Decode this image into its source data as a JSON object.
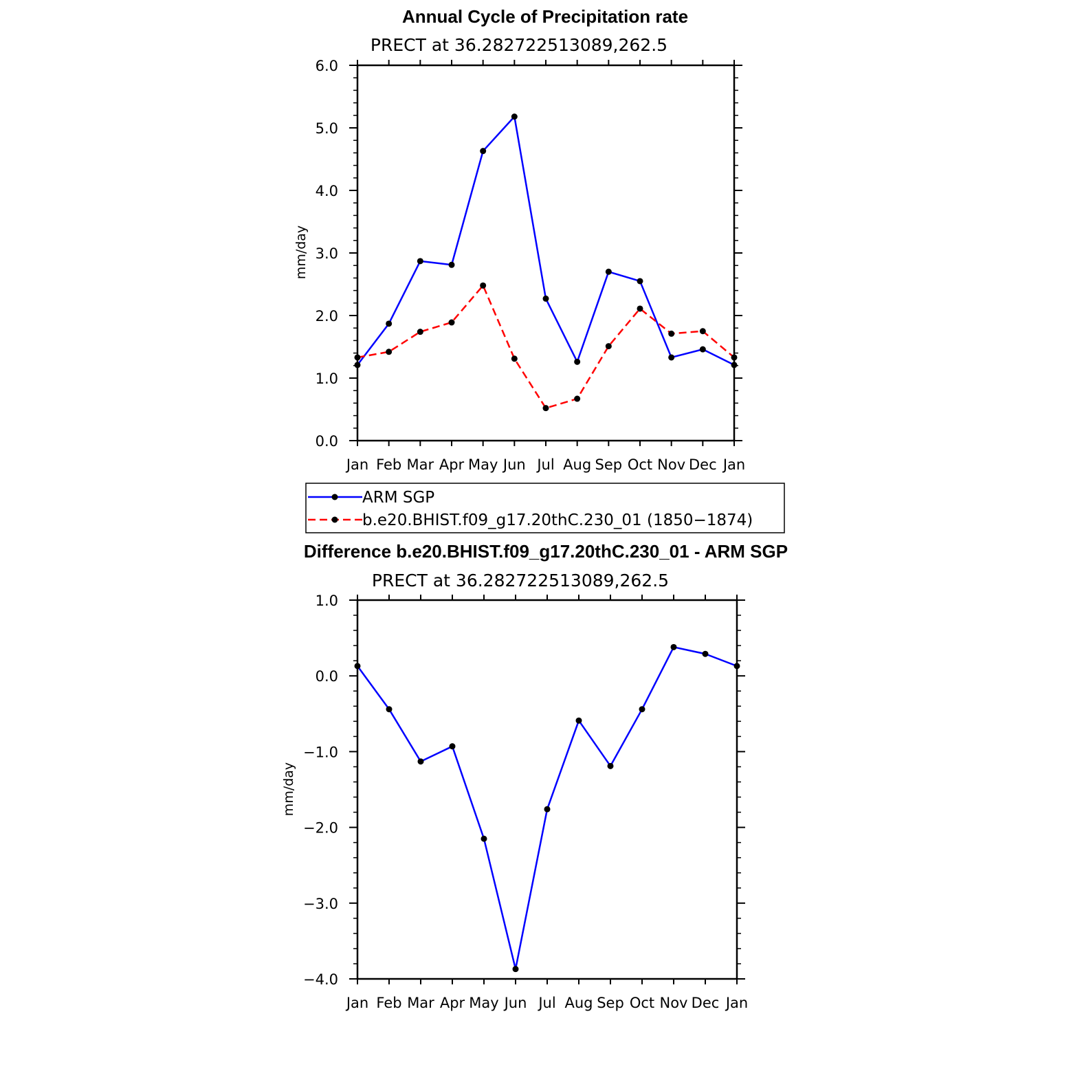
{
  "chart_data": [
    {
      "type": "line",
      "title": "Annual Cycle of Precipitation rate",
      "subtitle": "PRECT at 36.282722513089,262.5",
      "ylabel": "mm/day",
      "ylim": [
        0,
        6
      ],
      "yticks": [
        "0.0",
        "1.0",
        "2.0",
        "3.0",
        "4.0",
        "5.0",
        "6.0"
      ],
      "categories": [
        "Jan",
        "Feb",
        "Mar",
        "Apr",
        "May",
        "Jun",
        "Jul",
        "Aug",
        "Sep",
        "Oct",
        "Nov",
        "Dec",
        "Jan"
      ],
      "series": [
        {
          "name": "ARM SGP",
          "color": "#0000ff",
          "dash": "solid",
          "values": [
            1.21,
            1.87,
            2.87,
            2.81,
            4.63,
            5.18,
            2.27,
            1.26,
            2.7,
            2.55,
            1.33,
            1.46,
            1.21
          ]
        },
        {
          "name": "b.e20.BHIST.f09_g17.20thC.230_01 (1850−1874)",
          "color": "#ff0000",
          "dash": "dashed",
          "values": [
            1.33,
            1.42,
            1.74,
            1.89,
            2.48,
            1.31,
            0.52,
            0.67,
            1.51,
            2.11,
            1.71,
            1.75,
            1.33
          ]
        }
      ],
      "legend_position": "below"
    },
    {
      "type": "line",
      "title": "Difference b.e20.BHIST.f09_g17.20thC.230_01 - ARM SGP",
      "subtitle": "PRECT at 36.282722513089,262.5",
      "ylabel": "mm/day",
      "ylim": [
        -4,
        1
      ],
      "yticks": [
        "−4.0",
        "−3.0",
        "−2.0",
        "−1.0",
        "0.0",
        "1.0"
      ],
      "categories": [
        "Jan",
        "Feb",
        "Mar",
        "Apr",
        "May",
        "Jun",
        "Jul",
        "Aug",
        "Sep",
        "Oct",
        "Nov",
        "Dec",
        "Jan"
      ],
      "series": [
        {
          "color": "#0000ff",
          "dash": "solid",
          "values": [
            0.13,
            -0.44,
            -1.13,
            -0.93,
            -2.15,
            -3.87,
            -1.76,
            -0.59,
            -1.19,
            -0.44,
            0.38,
            0.29,
            0.13
          ]
        }
      ]
    }
  ]
}
